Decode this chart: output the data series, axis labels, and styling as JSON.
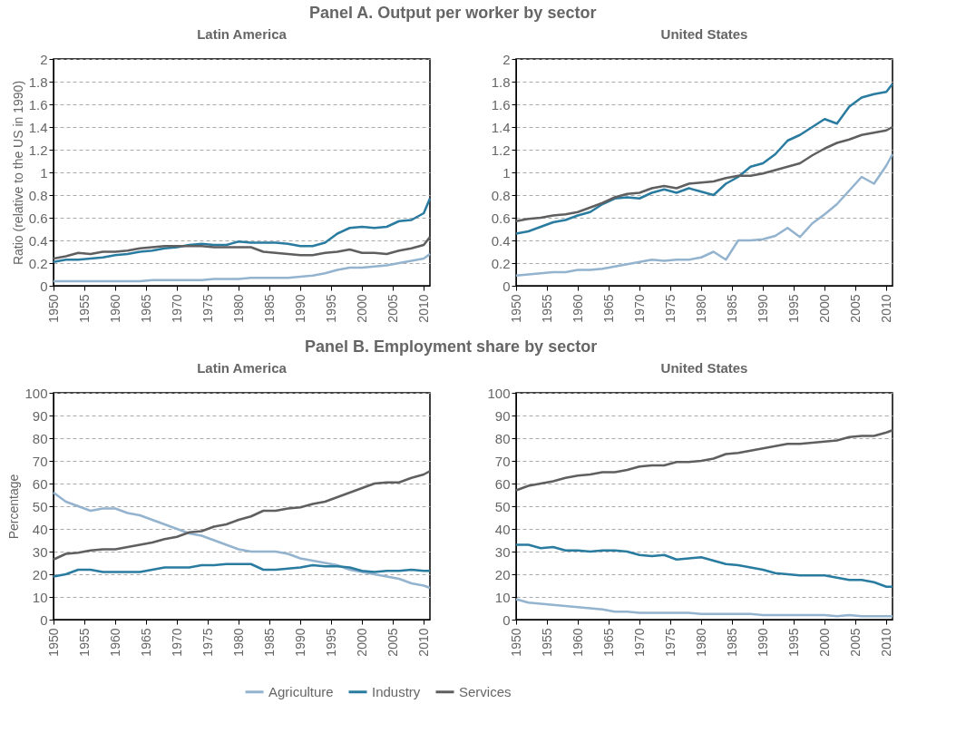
{
  "chart_data": [
    {
      "type": "line",
      "title": "Latin America",
      "annotations": [
        "Panel A. Output per worker by sector"
      ],
      "ylabel": "Ratio (relative to the US in 1990)",
      "xlim": [
        1950,
        2011
      ],
      "xticks": [
        1950,
        1955,
        1960,
        1965,
        1970,
        1975,
        1980,
        1985,
        1990,
        1995,
        2000,
        2005,
        2010
      ],
      "ylim": [
        0,
        2
      ],
      "yticks": [
        0,
        0.2,
        0.4,
        0.6,
        0.8,
        1,
        1.2,
        1.4,
        1.6,
        1.8,
        2
      ],
      "grid": "y",
      "legend": false,
      "line_style": "solid",
      "x": [
        1950,
        1952,
        1954,
        1956,
        1958,
        1960,
        1962,
        1964,
        1966,
        1968,
        1970,
        1972,
        1974,
        1976,
        1978,
        1980,
        1982,
        1984,
        1986,
        1988,
        1990,
        1992,
        1994,
        1996,
        1998,
        2000,
        2002,
        2004,
        2006,
        2008,
        2010,
        2011
      ],
      "series": [
        {
          "color": "#93b3cf",
          "values": [
            0.04,
            0.04,
            0.04,
            0.04,
            0.04,
            0.04,
            0.04,
            0.04,
            0.05,
            0.05,
            0.05,
            0.05,
            0.05,
            0.06,
            0.06,
            0.06,
            0.07,
            0.07,
            0.07,
            0.07,
            0.08,
            0.09,
            0.11,
            0.14,
            0.16,
            0.16,
            0.17,
            0.18,
            0.2,
            0.22,
            0.24,
            0.28
          ]
        },
        {
          "color": "#2a7ba0",
          "values": [
            0.21,
            0.23,
            0.23,
            0.24,
            0.25,
            0.27,
            0.28,
            0.3,
            0.31,
            0.33,
            0.34,
            0.36,
            0.37,
            0.36,
            0.36,
            0.39,
            0.38,
            0.38,
            0.38,
            0.37,
            0.35,
            0.35,
            0.38,
            0.46,
            0.51,
            0.52,
            0.51,
            0.52,
            0.57,
            0.58,
            0.64,
            0.77
          ]
        },
        {
          "color": "#5f5f61",
          "values": [
            0.24,
            0.26,
            0.29,
            0.28,
            0.3,
            0.3,
            0.31,
            0.33,
            0.34,
            0.35,
            0.35,
            0.35,
            0.35,
            0.34,
            0.34,
            0.34,
            0.34,
            0.3,
            0.29,
            0.28,
            0.27,
            0.27,
            0.29,
            0.3,
            0.32,
            0.29,
            0.29,
            0.28,
            0.31,
            0.33,
            0.36,
            0.43
          ]
        }
      ]
    },
    {
      "type": "line",
      "title": "United States",
      "xlim": [
        1950,
        2011
      ],
      "xticks": [
        1950,
        1955,
        1960,
        1965,
        1970,
        1975,
        1980,
        1985,
        1990,
        1995,
        2000,
        2005,
        2010
      ],
      "ylim": [
        0,
        2
      ],
      "yticks": [
        0,
        0.2,
        0.4,
        0.6,
        0.8,
        1,
        1.2,
        1.4,
        1.6,
        1.8,
        2
      ],
      "grid": "y",
      "legend": false,
      "line_style": "solid",
      "x": [
        1950,
        1952,
        1954,
        1956,
        1958,
        1960,
        1962,
        1964,
        1966,
        1968,
        1970,
        1972,
        1974,
        1976,
        1978,
        1980,
        1982,
        1984,
        1986,
        1988,
        1990,
        1992,
        1994,
        1996,
        1998,
        2000,
        2002,
        2004,
        2006,
        2008,
        2010,
        2011
      ],
      "series": [
        {
          "color": "#93b3cf",
          "values": [
            0.09,
            0.1,
            0.11,
            0.12,
            0.12,
            0.14,
            0.14,
            0.15,
            0.17,
            0.19,
            0.21,
            0.23,
            0.22,
            0.23,
            0.23,
            0.25,
            0.3,
            0.23,
            0.4,
            0.4,
            0.41,
            0.44,
            0.51,
            0.43,
            0.55,
            0.63,
            0.72,
            0.84,
            0.96,
            0.9,
            1.06,
            1.16
          ]
        },
        {
          "color": "#2a7ba0",
          "values": [
            0.46,
            0.48,
            0.52,
            0.56,
            0.58,
            0.62,
            0.65,
            0.72,
            0.77,
            0.78,
            0.77,
            0.82,
            0.85,
            0.82,
            0.86,
            0.83,
            0.8,
            0.9,
            0.96,
            1.05,
            1.08,
            1.16,
            1.28,
            1.33,
            1.4,
            1.47,
            1.43,
            1.58,
            1.66,
            1.69,
            1.71,
            1.78
          ]
        },
        {
          "color": "#5f5f61",
          "values": [
            0.57,
            0.59,
            0.6,
            0.62,
            0.63,
            0.65,
            0.69,
            0.73,
            0.78,
            0.81,
            0.82,
            0.86,
            0.88,
            0.86,
            0.9,
            0.91,
            0.92,
            0.95,
            0.97,
            0.97,
            0.99,
            1.02,
            1.05,
            1.08,
            1.15,
            1.21,
            1.26,
            1.29,
            1.33,
            1.35,
            1.37,
            1.4
          ]
        }
      ]
    },
    {
      "type": "line",
      "title": "Latin America",
      "annotations": [
        "Panel B. Employment share by sector"
      ],
      "ylabel": "Percentage",
      "xlim": [
        1950,
        2011
      ],
      "xticks": [
        1950,
        1955,
        1960,
        1965,
        1970,
        1975,
        1980,
        1985,
        1990,
        1995,
        2000,
        2005,
        2010
      ],
      "ylim": [
        0,
        100
      ],
      "yticks": [
        0,
        10,
        20,
        30,
        40,
        50,
        60,
        70,
        80,
        90,
        100
      ],
      "grid": "y",
      "legend": false,
      "line_style": "solid",
      "x": [
        1950,
        1952,
        1954,
        1956,
        1958,
        1960,
        1962,
        1964,
        1966,
        1968,
        1970,
        1972,
        1974,
        1976,
        1978,
        1980,
        1982,
        1984,
        1986,
        1988,
        1990,
        1992,
        1994,
        1996,
        1998,
        2000,
        2002,
        2004,
        2006,
        2008,
        2010,
        2011
      ],
      "series": [
        {
          "color": "#93b3cf",
          "values": [
            56,
            52,
            50,
            48,
            49,
            49,
            47,
            46,
            44,
            42,
            40,
            38,
            37,
            35,
            33,
            31,
            30,
            30,
            30,
            29,
            27,
            26,
            25,
            24,
            22,
            21,
            20,
            19,
            18,
            16,
            15,
            14
          ]
        },
        {
          "color": "#2a7ba0",
          "values": [
            19,
            20,
            22,
            22,
            21,
            21,
            21,
            21,
            22,
            23,
            23,
            23,
            24,
            24,
            24.5,
            24.5,
            24.5,
            22,
            22,
            22.5,
            23,
            24,
            23.5,
            23.5,
            23,
            21.5,
            21,
            21.5,
            21.5,
            22,
            21.5,
            21.5
          ]
        },
        {
          "color": "#5f5f61",
          "values": [
            26.5,
            29,
            29.5,
            30.5,
            31,
            31,
            32,
            33,
            34,
            35.5,
            36.5,
            38.5,
            39,
            41,
            42,
            44,
            45.5,
            48,
            48,
            49,
            49.5,
            51,
            52,
            54,
            56,
            58,
            60,
            60.5,
            60.5,
            62.5,
            64,
            65.5
          ]
        }
      ]
    },
    {
      "type": "line",
      "title": "United States",
      "xlim": [
        1950,
        2011
      ],
      "xticks": [
        1950,
        1955,
        1960,
        1965,
        1970,
        1975,
        1980,
        1985,
        1990,
        1995,
        2000,
        2005,
        2010
      ],
      "ylim": [
        0,
        100
      ],
      "yticks": [
        0,
        10,
        20,
        30,
        40,
        50,
        60,
        70,
        80,
        90,
        100
      ],
      "grid": "y",
      "legend": "bottom",
      "line_style": "solid",
      "x": [
        1950,
        1952,
        1954,
        1956,
        1958,
        1960,
        1962,
        1964,
        1966,
        1968,
        1970,
        1972,
        1974,
        1976,
        1978,
        1980,
        1982,
        1984,
        1986,
        1988,
        1990,
        1992,
        1994,
        1996,
        1998,
        2000,
        2002,
        2004,
        2006,
        2008,
        2010,
        2011
      ],
      "series": [
        {
          "name": "Agriculture",
          "color": "#93b3cf",
          "values": [
            9,
            7.5,
            7,
            6.5,
            6,
            5.5,
            5,
            4.5,
            3.5,
            3.5,
            3,
            3,
            3,
            3,
            3,
            2.5,
            2.5,
            2.5,
            2.5,
            2.5,
            2,
            2,
            2,
            2,
            2,
            2,
            1.5,
            2,
            1.5,
            1.5,
            1.5,
            1.5
          ]
        },
        {
          "name": "Industry",
          "color": "#2a7ba0",
          "values": [
            33,
            33,
            31.5,
            32,
            30.5,
            30.5,
            30,
            30.5,
            30.5,
            30,
            28.5,
            28,
            28.5,
            26.5,
            27,
            27.5,
            26,
            24.5,
            24,
            23,
            22,
            20.5,
            20,
            19.5,
            19.5,
            19.5,
            18.5,
            17.5,
            17.5,
            16.5,
            14.5,
            14.5
          ]
        },
        {
          "name": "Services",
          "color": "#5f5f61",
          "values": [
            57,
            59,
            60,
            61,
            62.5,
            63.5,
            64,
            65,
            65,
            66,
            67.5,
            68,
            68,
            69.5,
            69.5,
            70,
            71,
            73,
            73.5,
            74.5,
            75.5,
            76.5,
            77.5,
            77.5,
            78,
            78.5,
            79,
            80.5,
            81,
            81,
            82.5,
            83.5
          ]
        }
      ]
    }
  ]
}
